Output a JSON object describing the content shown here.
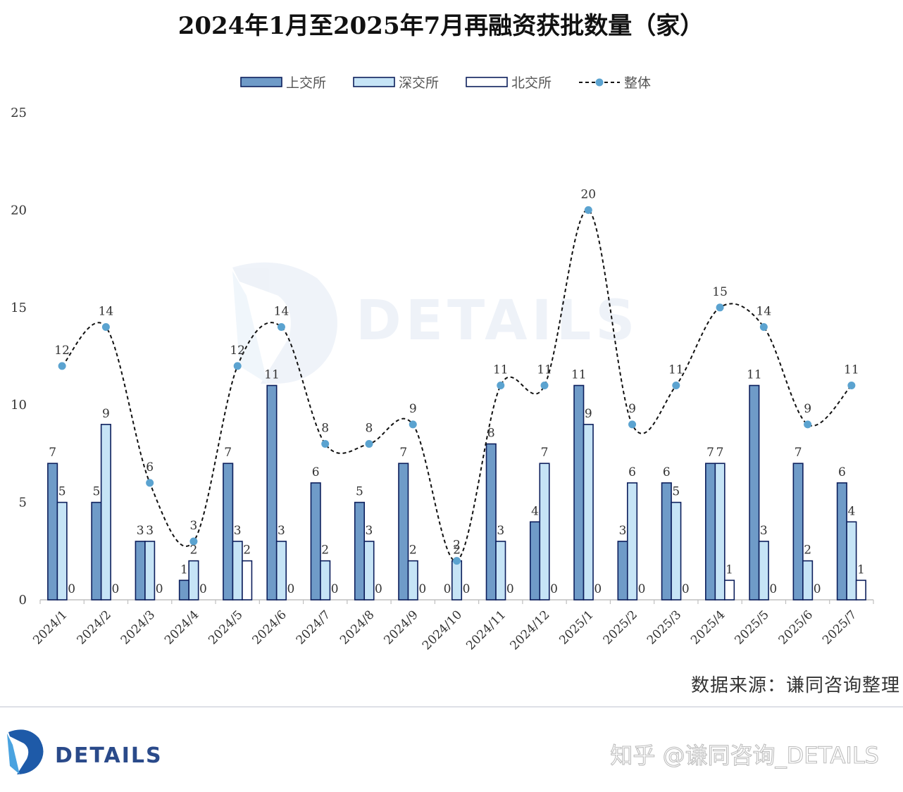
{
  "chart_data": {
    "type": "bar",
    "title": "2024年1月至2025年7月再融资获批数量（家）",
    "categories": [
      "2024/1",
      "2024/2",
      "2024/3",
      "2024/4",
      "2024/5",
      "2024/6",
      "2024/7",
      "2024/8",
      "2024/9",
      "2024/10",
      "2024/11",
      "2024/12",
      "2025/1",
      "2025/2",
      "2025/3",
      "2025/4",
      "2025/5",
      "2025/6",
      "2025/7"
    ],
    "series": [
      {
        "name": "上交所",
        "kind": "bar",
        "color": "#6f9bc8",
        "values": [
          7,
          5,
          3,
          1,
          7,
          11,
          6,
          5,
          7,
          0,
          8,
          4,
          11,
          3,
          6,
          7,
          11,
          7,
          6
        ]
      },
      {
        "name": "深交所",
        "kind": "bar",
        "color": "#c6e4f6",
        "values": [
          5,
          9,
          3,
          2,
          3,
          3,
          2,
          3,
          2,
          2,
          3,
          7,
          9,
          6,
          5,
          7,
          3,
          2,
          4
        ]
      },
      {
        "name": "北交所",
        "kind": "bar",
        "color": "#ffffff",
        "values": [
          0,
          0,
          0,
          0,
          2,
          0,
          0,
          0,
          0,
          0,
          0,
          0,
          0,
          0,
          0,
          1,
          0,
          0,
          1
        ]
      },
      {
        "name": "整体",
        "kind": "line",
        "style": "dashed-smooth",
        "color": "#5ba3d0",
        "values": [
          12,
          14,
          6,
          3,
          12,
          14,
          8,
          8,
          9,
          2,
          11,
          11,
          20,
          9,
          11,
          15,
          14,
          9,
          11
        ]
      }
    ],
    "ylim": [
      0,
      25
    ],
    "yticks": [
      0,
      5,
      10,
      15,
      20,
      25
    ],
    "xlabel": "",
    "ylabel": "",
    "legend_position": "top-center",
    "grid": false,
    "bar_edge_color": "#0d1f5c"
  },
  "source_note": "数据来源：谦同咨询整理",
  "watermark": {
    "brand": "DETAILS"
  },
  "footer": {
    "brand": "DETAILS",
    "zhihu_handle": "知乎 @谦同咨询_DETAILS"
  }
}
